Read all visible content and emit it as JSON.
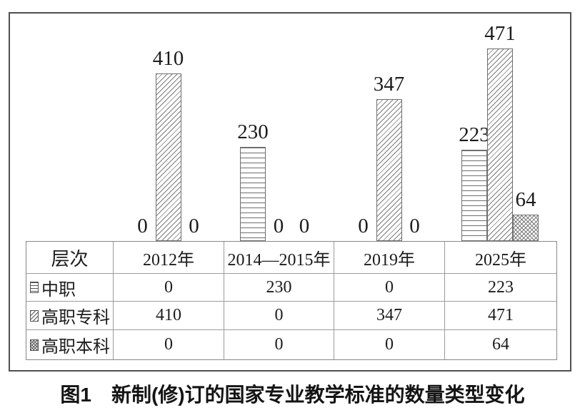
{
  "chart_data": {
    "type": "bar",
    "title": "",
    "categories": [
      "2012年",
      "2014—2015年",
      "2019年",
      "2025年"
    ],
    "series": [
      {
        "name": "中职",
        "swatch_icon": "horizontal-lines-swatch-icon",
        "pattern": "horizontal",
        "values": [
          0,
          230,
          0,
          223
        ]
      },
      {
        "name": "高职专科",
        "swatch_icon": "diagonal-hatch-swatch-icon",
        "pattern": "diagonal",
        "values": [
          410,
          0,
          347,
          471
        ]
      },
      {
        "name": "高职本科",
        "swatch_icon": "crosshatch-swatch-icon",
        "pattern": "crosshatch",
        "values": [
          0,
          0,
          0,
          64
        ]
      }
    ],
    "value_labels_shown": true,
    "zero_values_labeled": true,
    "xlabel": "",
    "ylabel": "",
    "ylim": [
      0,
      500
    ],
    "grid": false,
    "y_axis_visible": false,
    "legend_position": "table-first-column"
  },
  "table": {
    "header_col": "层次",
    "columns": [
      "2012年",
      "2014—2015年",
      "2019年",
      "2025年"
    ],
    "rows": [
      {
        "label": "中职",
        "values": [
          "0",
          "230",
          "0",
          "223"
        ]
      },
      {
        "label": "高职专科",
        "values": [
          "410",
          "0",
          "347",
          "471"
        ]
      },
      {
        "label": "高职本科",
        "values": [
          "0",
          "0",
          "0",
          "64"
        ]
      }
    ]
  },
  "caption": {
    "prefix": "图1",
    "text": "新制(修)订的国家专业教学标准的数量类型变化"
  },
  "colors": {
    "background": "#ffffff",
    "text": "#1c1c1c",
    "frame_border": "#4f4f4f",
    "table_border": "#8f8f8f",
    "hatch_stroke": "#7c7c7c",
    "bar_fill": "#ffffff"
  }
}
